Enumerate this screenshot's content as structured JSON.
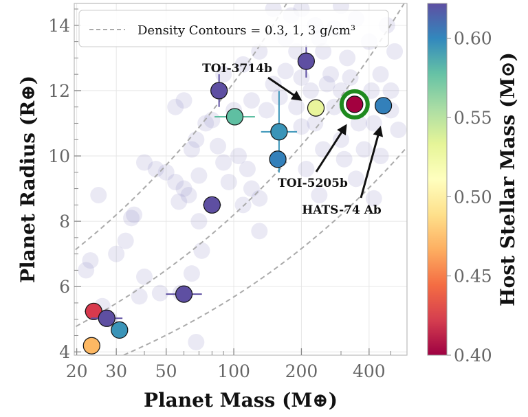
{
  "chart_data": {
    "type": "scatter",
    "xlabel": "Planet Mass (M⊕)",
    "ylabel": "Planet Radius (R⊕)",
    "colorbar_label": "Host Stellar Mass (M⊙)",
    "x_scale": "log",
    "xlim": [
      19.5,
      590
    ],
    "ylim": [
      3.9,
      14.67
    ],
    "x_ticks": [
      20,
      30,
      50,
      100,
      200,
      400
    ],
    "x_tick_labels": [
      "20",
      "30",
      "50",
      "100",
      "200",
      "400"
    ],
    "y_ticks": [
      4,
      6,
      8,
      10,
      12,
      14
    ],
    "y_tick_labels": [
      "4",
      "6",
      "8",
      "10",
      "12",
      "14"
    ],
    "colorbar": {
      "colormap": "Spectral",
      "range": [
        0.4,
        0.622
      ],
      "ticks": [
        0.4,
        0.45,
        0.5,
        0.55,
        0.6
      ],
      "tick_labels": [
        "0.40",
        "0.45",
        "0.50",
        "0.55",
        "0.60"
      ]
    },
    "grid": true,
    "legend": {
      "placement": "top",
      "label": "Density Contours = 0.3, 1, 3 g/cm³"
    },
    "density_contours_g_cm3": [
      0.3,
      1,
      3
    ],
    "highlighted_planets": [
      {
        "mass": 210,
        "radius": 12.9,
        "stellar_mass": 0.62,
        "color": "#5e4fa2",
        "merr": 0,
        "rerr": 0.5
      },
      {
        "mass": 86,
        "radius": 12.0,
        "stellar_mass": 0.62,
        "color": "#5e4fa2",
        "merr": 0,
        "rerr": 0.5
      },
      {
        "mass": 101,
        "radius": 11.2,
        "stellar_mass": 0.565,
        "color": "#5fbfa2",
        "merr": 0.09,
        "rerr": 0
      },
      {
        "mass": 232,
        "radius": 11.47,
        "stellar_mass": 0.52,
        "color": "#e9f59c",
        "merr": 0,
        "rerr": 0,
        "label": "TOI-3714b"
      },
      {
        "mass": 345,
        "radius": 11.58,
        "stellar_mass": 0.4,
        "color": "#a3003f",
        "merr": 0,
        "rerr": 0,
        "label": "TOI-5205b",
        "ring": "#1e8a1e"
      },
      {
        "mass": 463,
        "radius": 11.54,
        "stellar_mass": 0.6,
        "color": "#3380ba",
        "merr": 0,
        "rerr": 0,
        "label": "HATS-74 Ab"
      },
      {
        "mass": 159,
        "radius": 10.74,
        "stellar_mass": 0.59,
        "color": "#3a94b8",
        "merr": 0.08,
        "rerr": 1.25
      },
      {
        "mass": 157,
        "radius": 9.9,
        "stellar_mass": 0.6,
        "color": "#3380ba",
        "merr": 0,
        "rerr": 0
      },
      {
        "mass": 80,
        "radius": 8.5,
        "stellar_mass": 0.62,
        "color": "#5e4fa2",
        "merr": 0.04,
        "rerr": 0
      },
      {
        "mass": 60,
        "radius": 5.77,
        "stellar_mass": 0.62,
        "color": "#5e4fa2",
        "merr": 0.08,
        "rerr": 0
      },
      {
        "mass": 23.8,
        "radius": 5.24,
        "stellar_mass": 0.42,
        "color": "#d8394d",
        "merr": 0.04,
        "rerr": 0
      },
      {
        "mass": 27.2,
        "radius": 5.03,
        "stellar_mass": 0.62,
        "color": "#5e4fa2",
        "merr": 0.07,
        "rerr": 0
      },
      {
        "mass": 31,
        "radius": 4.67,
        "stellar_mass": 0.59,
        "color": "#3a94b8",
        "merr": 0,
        "rerr": 0
      },
      {
        "mass": 23.3,
        "radius": 4.19,
        "stellar_mass": 0.48,
        "color": "#fdb863",
        "merr": 0,
        "rerr": 0
      }
    ],
    "background_planets": [
      [
        25,
        8.8
      ],
      [
        23,
        6.8
      ],
      [
        22,
        6.5
      ],
      [
        30,
        7.0
      ],
      [
        33,
        7.4
      ],
      [
        35,
        8.1
      ],
      [
        36,
        8.2
      ],
      [
        40,
        9.8
      ],
      [
        45,
        9.6
      ],
      [
        47,
        5.8
      ],
      [
        50,
        9.5
      ],
      [
        55,
        9.2
      ],
      [
        57,
        8.6
      ],
      [
        60,
        9.0
      ],
      [
        63,
        8.8
      ],
      [
        65,
        10.2
      ],
      [
        68,
        10.5
      ],
      [
        70,
        8.0
      ],
      [
        75,
        11.0
      ],
      [
        58,
        5.8
      ],
      [
        65,
        6.4
      ],
      [
        72,
        7.1
      ],
      [
        68,
        4.3
      ],
      [
        40,
        6.3
      ],
      [
        38,
        5.7
      ],
      [
        26,
        5.4
      ],
      [
        28,
        5.0
      ],
      [
        130,
        7.7
      ],
      [
        110,
        8.5
      ],
      [
        120,
        9.0
      ],
      [
        95,
        9.2
      ],
      [
        90,
        9.8
      ],
      [
        105,
        10.0
      ],
      [
        115,
        9.6
      ],
      [
        130,
        8.7
      ],
      [
        140,
        11.4
      ],
      [
        60,
        11.7
      ],
      [
        55,
        11.5
      ],
      [
        80,
        11.1
      ],
      [
        90,
        12.5
      ],
      [
        110,
        12.8
      ],
      [
        130,
        13.2
      ],
      [
        150,
        12.2
      ],
      [
        170,
        13.6
      ],
      [
        180,
        14.3
      ],
      [
        200,
        14.5
      ],
      [
        230,
        14.0
      ],
      [
        250,
        13.2
      ],
      [
        270,
        12.5
      ],
      [
        300,
        12.0
      ],
      [
        320,
        13.0
      ],
      [
        350,
        14.2
      ],
      [
        400,
        13.5
      ],
      [
        450,
        12.5
      ],
      [
        500,
        12.0
      ],
      [
        420,
        11.0
      ],
      [
        300,
        10.5
      ],
      [
        250,
        10.2
      ],
      [
        200,
        10.9
      ],
      [
        280,
        11.5
      ],
      [
        260,
        12.2
      ],
      [
        220,
        12.0
      ],
      [
        190,
        11.5
      ],
      [
        160,
        11.8
      ],
      [
        380,
        10.2
      ],
      [
        450,
        10.0
      ],
      [
        500,
        11.4
      ],
      [
        350,
        9.3
      ],
      [
        240,
        8.8
      ],
      [
        210,
        9.6
      ],
      [
        420,
        8.7
      ],
      [
        480,
        14.0
      ],
      [
        300,
        14.6
      ],
      [
        150,
        14.5
      ],
      [
        520,
        13.2
      ],
      [
        240,
        13.6
      ],
      [
        280,
        13.9
      ],
      [
        330,
        12.4
      ],
      [
        200,
        12.4
      ],
      [
        170,
        12.6
      ],
      [
        120,
        11.7
      ],
      [
        100,
        11.4
      ],
      [
        70,
        9.4
      ],
      [
        85,
        10.3
      ],
      [
        190,
        13.2
      ],
      [
        360,
        11.0
      ],
      [
        410,
        12.0
      ],
      [
        540,
        10.8
      ],
      [
        230,
        11.0
      ],
      [
        310,
        9.9
      ]
    ],
    "background_color": "#8c86c4"
  }
}
